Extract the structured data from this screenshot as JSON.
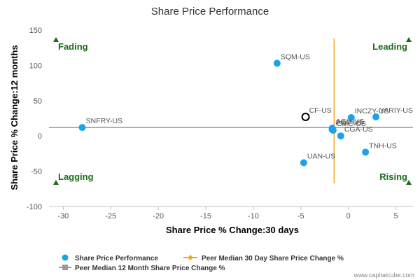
{
  "chart_data": {
    "type": "scatter",
    "title": "Share Price Performance",
    "xlabel": "Share Price % Change:30 days",
    "ylabel": "Share Price % Change:12 months",
    "xlim": [
      -31.5,
      6.8
    ],
    "ylim": [
      -100,
      150
    ],
    "xticks": [
      -30,
      -25,
      -20,
      -15,
      -10,
      -5,
      0,
      5
    ],
    "yticks": [
      150,
      100,
      50,
      0,
      -50,
      -100
    ],
    "grid": false,
    "points": [
      {
        "label": "SQM-US",
        "x": -7.5,
        "y": 103
      },
      {
        "label": "SNFRY-US",
        "x": -28.0,
        "y": 12
      },
      {
        "label": "INCZY-US",
        "x": 0.3,
        "y": 26
      },
      {
        "label": "YARIY-US",
        "x": 2.9,
        "y": 27
      },
      {
        "label": "AGU-US",
        "x": -1.7,
        "y": 11
      },
      {
        "label": "POT-US",
        "x": -1.7,
        "y": 9
      },
      {
        "label": "CMC-US",
        "x": -1.6,
        "y": 8
      },
      {
        "label": "CGA-US",
        "x": -0.8,
        "y": 0
      },
      {
        "label": "TNH-US",
        "x": 1.8,
        "y": -23
      },
      {
        "label": "UAN-US",
        "x": -4.7,
        "y": -38
      }
    ],
    "highlight": {
      "label": "CF-US",
      "x": -4.5,
      "y": 27
    },
    "peer_median_30d": -1.5,
    "peer_median_12m": 12,
    "quadrants": {
      "top_left": "Fading",
      "top_right": "Leading",
      "bottom_left": "Lagging",
      "bottom_right": "Rising"
    },
    "legend": {
      "placement": "bottom-left",
      "items": [
        "Share Price Performance",
        "Peer Median 30 Day Share Price Change %",
        "Peer Median 12 Month Share Price Change %"
      ]
    },
    "colors": {
      "points": "#1aa3ea",
      "median_30d": "#f5a623",
      "median_12m": "#999999",
      "quadrant": "#1a6b1a",
      "highlight": "#000000"
    }
  },
  "credit": "www.capitalcube.com"
}
